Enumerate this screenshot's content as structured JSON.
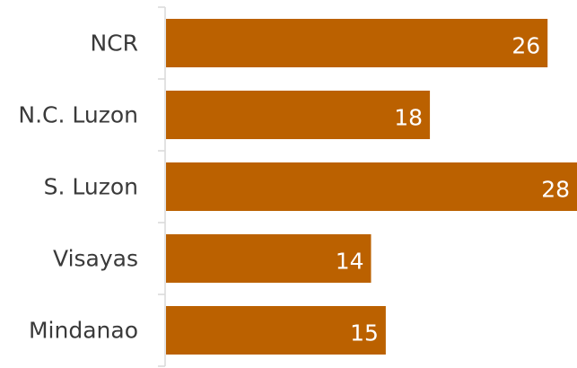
{
  "chart_data": {
    "type": "bar",
    "orientation": "horizontal",
    "categories": [
      "NCR",
      "N.C. Luzon",
      "S. Luzon",
      "Visayas",
      "Mindanao"
    ],
    "values": [
      26,
      18,
      28,
      14,
      15
    ],
    "data_labels": [
      "26",
      "18",
      "28",
      "14",
      "15"
    ],
    "title": "",
    "xlabel": "",
    "ylabel": "",
    "xlim": [
      0,
      28
    ],
    "grid": false,
    "legend": "none",
    "bar_color": "#bb6100",
    "axis_color": "#d9d9d9",
    "label_color": "#3a3a3a",
    "value_label_color": "#ffffff"
  }
}
